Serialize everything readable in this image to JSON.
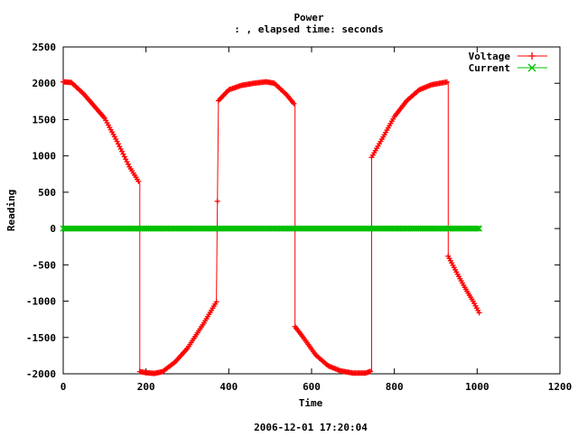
{
  "chart_data": {
    "type": "line",
    "title": "Power",
    "subtitle": ": , elapsed time:  seconds",
    "xlabel": "Time",
    "ylabel": "Reading",
    "footer": "2006-12-01 17:20:04",
    "xlim": [
      0,
      1200
    ],
    "ylim": [
      -2000,
      2500
    ],
    "x_ticks": [
      0,
      200,
      400,
      600,
      800,
      1000,
      1200
    ],
    "y_ticks": [
      -2000,
      -1500,
      -1000,
      -500,
      0,
      500,
      1000,
      1500,
      2000,
      2500
    ],
    "grid": false,
    "legend_position": "top-right",
    "series": [
      {
        "name": "Voltage",
        "color": "#ff0000",
        "marker": "plus",
        "x": [
          0,
          20,
          50,
          100,
          130,
          160,
          185,
          185,
          200,
          220,
          240,
          270,
          300,
          340,
          370,
          375,
          400,
          430,
          460,
          490,
          510,
          540,
          560,
          560,
          580,
          610,
          640,
          670,
          700,
          730,
          745,
          745,
          770,
          800,
          830,
          860,
          890,
          930,
          930,
          950,
          970,
          990,
          1005
        ],
        "values": [
          2020,
          2010,
          1850,
          1520,
          1200,
          850,
          620,
          -1970,
          -1985,
          -1995,
          -1970,
          -1840,
          -1650,
          -1300,
          -1010,
          1760,
          1910,
          1970,
          2000,
          2020,
          2000,
          1840,
          1700,
          -1350,
          -1500,
          -1740,
          -1890,
          -1960,
          -1990,
          -1990,
          -1960,
          980,
          1230,
          1540,
          1760,
          1910,
          1980,
          2020,
          -380,
          -600,
          -810,
          -1000,
          -1160
        ]
      },
      {
        "name": "Current",
        "color": "#00c000",
        "marker": "cross",
        "x": [
          0,
          1005
        ],
        "values": [
          0,
          0
        ]
      }
    ]
  }
}
